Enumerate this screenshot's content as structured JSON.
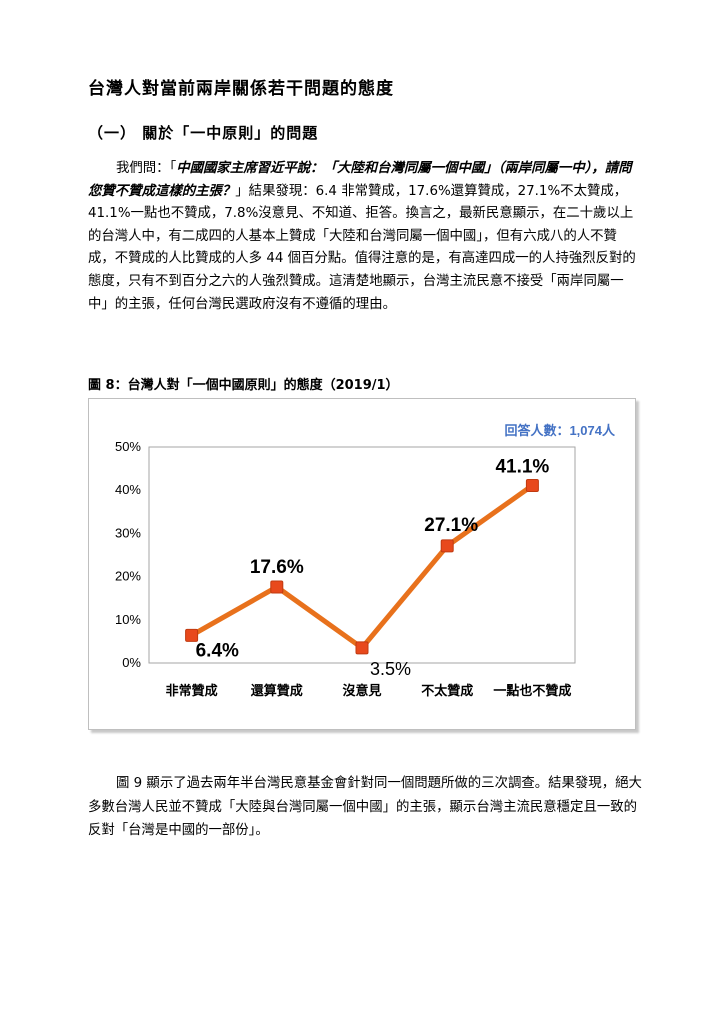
{
  "title": "台灣人對當前兩岸關係若干問題的態度",
  "subtitle": "（一） 關於「一中原則」的問題",
  "para1": {
    "lead": "我們問：「",
    "question": "中國國家主席習近平說：「大陸和台灣同屬一個中國」（兩岸同屬一中），請問您贊不贊成這樣的主張？",
    "rest": "」結果發現：6.4 非常贊成，17.6%還算贊成，27.1%不太贊成，41.1%一點也不贊成，7.8%沒意見、不知道、拒答。換言之，最新民意顯示，在二十歲以上的台灣人中，有二成四的人基本上贊成「大陸和台灣同屬一個中國」，但有六成八的人不贊成，不贊成的人比贊成的人多 44 個百分點。值得注意的是，有高達四成一的人持強烈反對的態度，只有不到百分之六的人強烈贊成。這清楚地顯示，台灣主流民意不接受「兩岸同屬一中」的主張，任何台灣民選政府沒有不遵循的理由。"
  },
  "figure_caption": "圖 8：台灣人對「一個中國原則」的態度（2019/1）",
  "para2": "圖 9 顯示了過去兩年半台灣民意基金會針對同一個問題所做的三次調查。結果發現，絕大多數台灣人民並不贊成「大陸與台灣同屬一個中國」的主張，顯示台灣主流民意穩定且一致的反對「台灣是中國的一部份」。",
  "chart_data": {
    "type": "line",
    "categories": [
      "非常贊成",
      "還算贊成",
      "沒意見",
      "不太贊成",
      "一點也不贊成"
    ],
    "series": [
      {
        "values": [
          6.4,
          17.6,
          3.5,
          27.1,
          41.1
        ]
      }
    ],
    "data_labels": [
      "6.4%",
      "17.6%",
      "3.5%",
      "27.1%",
      "41.1%"
    ],
    "y_ticks": [
      "0%",
      "10%",
      "20%",
      "30%",
      "40%",
      "50%"
    ],
    "ylim": [
      0,
      50
    ],
    "grid": false,
    "annotation": "回答人數：1,074人",
    "line_color": "#e8711c",
    "marker_color": "#e8491c",
    "annotation_color": "#4472c4"
  }
}
